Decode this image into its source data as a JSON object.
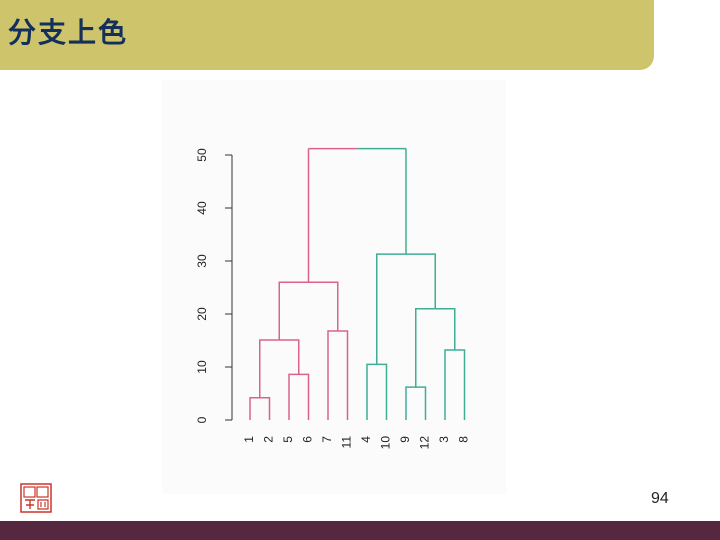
{
  "slide": {
    "title": "分支上色",
    "page_number": "94"
  },
  "colors": {
    "title_bar": "#cdc46c",
    "title_text": "#14305a",
    "footer_bar": "#55283f",
    "branch_pink": "#d9638e",
    "branch_teal": "#3fae95"
  },
  "logo": {
    "icon": "red-seal-icon"
  },
  "chart_data": {
    "type": "dendrogram",
    "y_axis": {
      "range": [
        0,
        50
      ],
      "ticks": [
        "0",
        "10",
        "20",
        "30",
        "40",
        "50"
      ]
    },
    "leaf_order": [
      "1",
      "2",
      "5",
      "6",
      "7",
      "11",
      "4",
      "10",
      "9",
      "12",
      "3",
      "8"
    ],
    "merges": [
      {
        "left": "1",
        "right": "2",
        "height": 4.2,
        "color": "pink"
      },
      {
        "left": "5",
        "right": "6",
        "height": 8.6,
        "color": "pink"
      },
      {
        "left": "(1,2)",
        "right": "(5,6)",
        "height": 15.1,
        "color": "pink"
      },
      {
        "left": "7",
        "right": "11",
        "height": 16.8,
        "color": "pink"
      },
      {
        "left": "(1,2,5,6)",
        "right": "(7,11)",
        "height": 26.0,
        "color": "pink"
      },
      {
        "left": "4",
        "right": "10",
        "height": 10.5,
        "color": "teal"
      },
      {
        "left": "9",
        "right": "12",
        "height": 6.2,
        "color": "teal"
      },
      {
        "left": "3",
        "right": "8",
        "height": 13.2,
        "color": "teal"
      },
      {
        "left": "(9,12)",
        "right": "(3,8)",
        "height": 21.0,
        "color": "teal"
      },
      {
        "left": "(4,10)",
        "right": "(9,12,3,8)",
        "height": 31.3,
        "color": "teal"
      },
      {
        "left": "pink cluster",
        "right": "teal cluster",
        "height": 51.2,
        "color": "mixed"
      }
    ]
  }
}
